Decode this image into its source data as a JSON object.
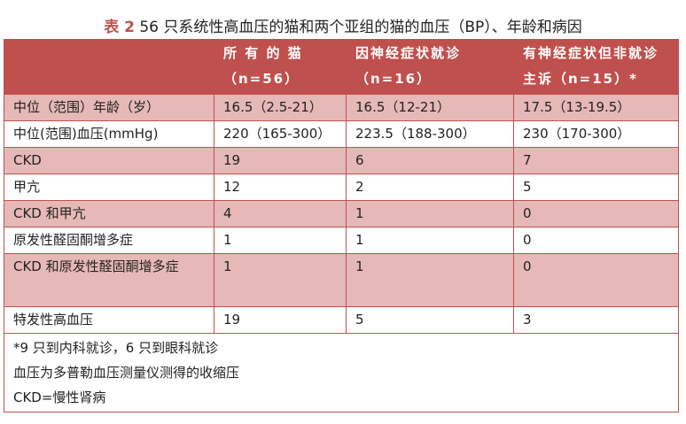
{
  "title": {
    "label": "表 2",
    "text": "56 只系统性高血压的猫和两个亚组的猫的血压（BP）、年龄和病因"
  },
  "header": [
    "",
    "所 有 的 猫（n=56）",
    "因神经症状就诊（n=16）",
    "有神经症状但非就诊主诉（n=15）*"
  ],
  "rows": [
    [
      "中位（范围）年龄（岁）",
      "16.5（2.5-21）",
      "16.5（12-21）",
      "17.5（13-19.5）"
    ],
    [
      "中位(范围)血压(mmHg)",
      "220（165-300）",
      "223.5（188-300）",
      "230（170-300）"
    ],
    [
      "CKD",
      "19",
      "6",
      "7"
    ],
    [
      "甲亢",
      "12",
      "2",
      "5"
    ],
    [
      "CKD 和甲亢",
      "4",
      "1",
      "0"
    ],
    [
      "原发性醛固酮增多症",
      "1",
      "1",
      "0"
    ],
    [
      "CKD 和原发性醛固酮增多症",
      "1",
      "1",
      "0"
    ],
    [
      "特发性高血压",
      "19",
      "5",
      "3"
    ]
  ],
  "footnotes": [
    "*9 只到内科就诊，6 只到眼科就诊",
    "血压为多普勒血压测量仪测得的收缩压",
    "CKD=慢性肾病"
  ],
  "colors": {
    "header": "#c0504d",
    "stripe": "#e6b8b7"
  }
}
